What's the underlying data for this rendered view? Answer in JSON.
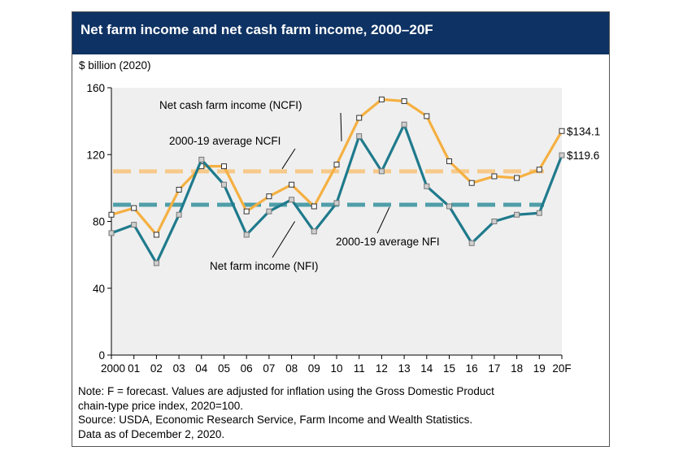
{
  "chart_data": {
    "type": "line",
    "title": "Net farm income and net cash farm income, 2000–20F",
    "ylabel": "$ billion (2020)",
    "ylim": [
      0,
      160
    ],
    "yticks": [
      0,
      40,
      80,
      120,
      160
    ],
    "categories": [
      "2000",
      "01",
      "02",
      "03",
      "04",
      "05",
      "06",
      "07",
      "08",
      "09",
      "10",
      "11",
      "12",
      "13",
      "14",
      "15",
      "16",
      "17",
      "18",
      "19",
      "20F"
    ],
    "series": [
      {
        "name": "Net cash farm income (NCFI)",
        "color": "#f5b041",
        "values": [
          84,
          88,
          72,
          99,
          113,
          113,
          86,
          95,
          102,
          89,
          114,
          142,
          153,
          152,
          143,
          116,
          103,
          107,
          106,
          111,
          134.1
        ]
      },
      {
        "name": "Net farm income (NFI)",
        "color": "#1f7a8c",
        "values": [
          73,
          78,
          55,
          84,
          117,
          102,
          72,
          86,
          93,
          74,
          91,
          131,
          110,
          138,
          101,
          89,
          67,
          80,
          84,
          85,
          119.6
        ]
      }
    ],
    "averages": [
      {
        "name": "2000-19 average NCFI",
        "value": 110,
        "color": "#f7c98a"
      },
      {
        "name": "2000-19 average NFI",
        "value": 90,
        "color": "#4f9ea8"
      }
    ],
    "end_labels": [
      "$134.1",
      "$119.6"
    ],
    "grid": false
  },
  "notes": [
    "Note: F = forecast. Values are adjusted for inflation using the Gross Domestic Product",
    "chain-type price index, 2020=100.",
    "Source: USDA, Economic Research Service, Farm Income and Wealth Statistics.",
    "Data as of December 2, 2020."
  ]
}
